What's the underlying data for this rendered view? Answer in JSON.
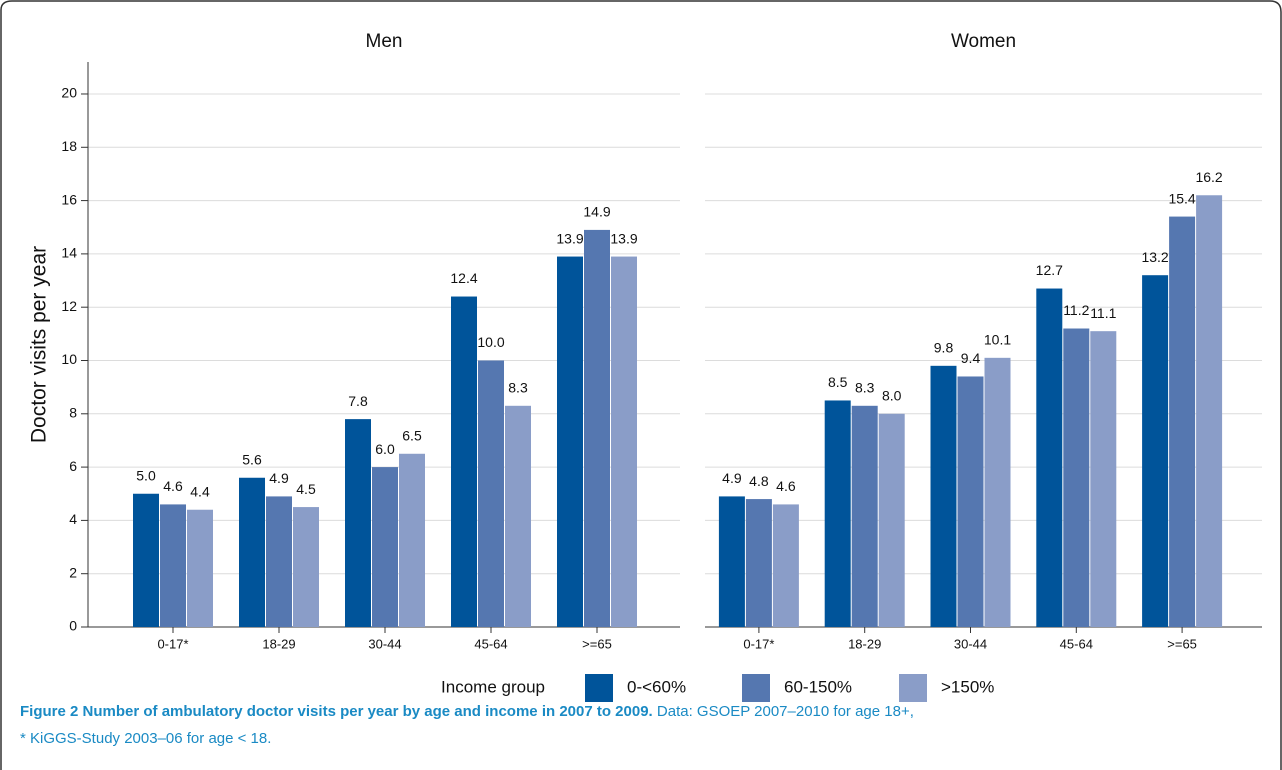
{
  "chart_data": [
    {
      "type": "bar",
      "title": "Men",
      "ylabel": "Doctor visits per year",
      "legend_title": "Income group",
      "categories": [
        "0-17*",
        "18-29",
        "30-44",
        "45-64",
        ">=65"
      ],
      "series": [
        {
          "name": "0-<60%",
          "color": "#00549a",
          "values": [
            5.0,
            5.6,
            7.8,
            12.4,
            13.9
          ],
          "value_labels": [
            "5.0",
            "5.6",
            "7.8",
            "12.4",
            "13.9"
          ]
        },
        {
          "name": "60-150%",
          "color": "#5577b0",
          "values": [
            4.6,
            4.9,
            6.0,
            10.0,
            14.9
          ],
          "value_labels": [
            "4.6",
            "4.9",
            "6.0",
            "10.0",
            "14.9"
          ]
        },
        {
          "name": ">150%",
          "color": "#8a9dc8",
          "values": [
            4.4,
            4.5,
            6.5,
            8.3,
            13.9
          ],
          "value_labels": [
            "4.4",
            "4.5",
            "6.5",
            "8.3",
            "13.9"
          ]
        }
      ],
      "ylim": [
        0,
        21.2
      ],
      "yticks": [
        0,
        2,
        4,
        6,
        8,
        10,
        12,
        14,
        16,
        18,
        20
      ],
      "grid": true
    },
    {
      "type": "bar",
      "title": "Women",
      "categories": [
        "0-17*",
        "18-29",
        "30-44",
        "45-64",
        ">=65"
      ],
      "series": [
        {
          "name": "0-<60%",
          "color": "#00549a",
          "values": [
            4.9,
            8.5,
            9.8,
            12.7,
            13.2
          ],
          "value_labels": [
            "4.9",
            "8.5",
            "9.8",
            "12.7",
            "13.2"
          ]
        },
        {
          "name": "60-150%",
          "color": "#5577b0",
          "values": [
            4.8,
            8.3,
            9.4,
            11.2,
            15.4
          ],
          "value_labels": [
            "4.8",
            "8.3",
            "9.4",
            "11.2",
            "15.4"
          ]
        },
        {
          "name": ">150%",
          "color": "#8a9dc8",
          "values": [
            4.6,
            8.0,
            10.1,
            11.1,
            16.2
          ],
          "value_labels": [
            "4.6",
            "8.0",
            "10.1",
            "11.1",
            "16.2"
          ]
        }
      ],
      "ylim": [
        0,
        21.2
      ],
      "yticks": [
        0,
        2,
        4,
        6,
        8,
        10,
        12,
        14,
        16,
        18,
        20
      ],
      "grid": true
    }
  ],
  "caption": {
    "label": "Figure 2",
    "title": "Number of ambulatory doctor visits per year by age and income in 2007 to 2009.",
    "text": "Data: GSOEP 2007–2010 for age 18+,",
    "note": "* KiGGS-Study 2003–06 for age < 18."
  }
}
